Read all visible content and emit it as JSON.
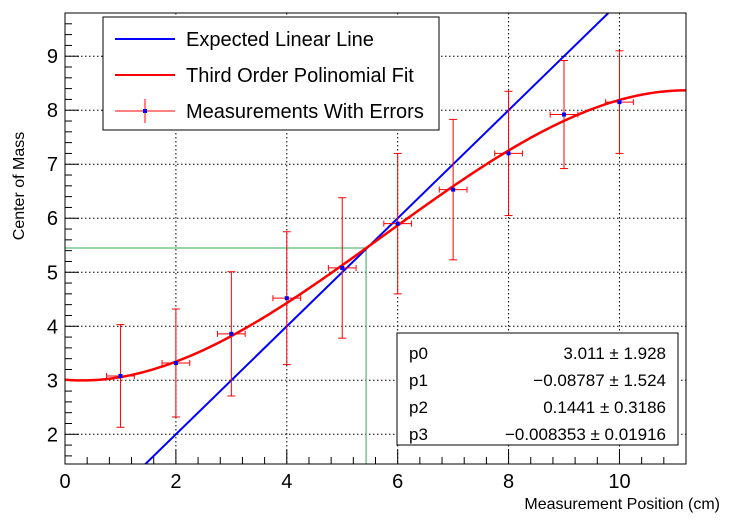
{
  "chart_data": {
    "type": "scatter",
    "xlabel": "Measurement Position (cm)",
    "ylabel": "Center of Mass",
    "xlim": [
      0,
      11.2
    ],
    "ylim": [
      1.45,
      9.8
    ],
    "x_ticks": [
      0,
      2,
      4,
      6,
      8,
      10
    ],
    "y_ticks": [
      2,
      3,
      4,
      5,
      6,
      7,
      8,
      9
    ],
    "grid": true,
    "legend": [
      {
        "label": "Expected Linear Line",
        "color": "#0000ff",
        "style": "line"
      },
      {
        "label": "Third Order Polinomial Fit",
        "color": "#ff0000",
        "style": "line"
      },
      {
        "label": "Measurements With Errors",
        "color": "#ff0000",
        "style": "errorbar"
      }
    ],
    "legend_position": "top-left",
    "series": [
      {
        "name": "Expected Linear Line",
        "type": "line",
        "color": "#0000ff",
        "x": [
          0,
          11.2
        ],
        "y": [
          0,
          11.2
        ]
      },
      {
        "name": "Third Order Polinomial Fit",
        "type": "curve",
        "color": "#ff0000",
        "params": [
          3.011,
          -0.08787,
          0.1441,
          -0.008353
        ]
      },
      {
        "name": "Measurements With Errors",
        "type": "errorbar",
        "color": "#ff0000",
        "marker_color": "#0000ff",
        "x": [
          1,
          2,
          3,
          4,
          5,
          6,
          7,
          8,
          9,
          10
        ],
        "y": [
          3.08,
          3.32,
          3.86,
          4.52,
          5.08,
          5.9,
          6.53,
          7.2,
          7.92,
          8.15
        ],
        "xerr": [
          0.25,
          0.25,
          0.25,
          0.25,
          0.25,
          0.25,
          0.25,
          0.25,
          0.25,
          0.25
        ],
        "yerr": [
          0.95,
          1.0,
          1.15,
          1.23,
          1.3,
          1.3,
          1.3,
          1.15,
          1.0,
          0.95
        ]
      }
    ],
    "crosshair": {
      "x": 5.43,
      "y": 5.45,
      "color": "#33aa55"
    },
    "stats": [
      {
        "name": "p0",
        "value": "3.011",
        "error": "1.928"
      },
      {
        "name": "p1",
        "value": "−0.08787",
        "error": "1.524"
      },
      {
        "name": "p2",
        "value": "0.1441",
        "error": "0.3186"
      },
      {
        "name": "p3",
        "value": "−0.008353",
        "error": "0.01916"
      }
    ]
  }
}
